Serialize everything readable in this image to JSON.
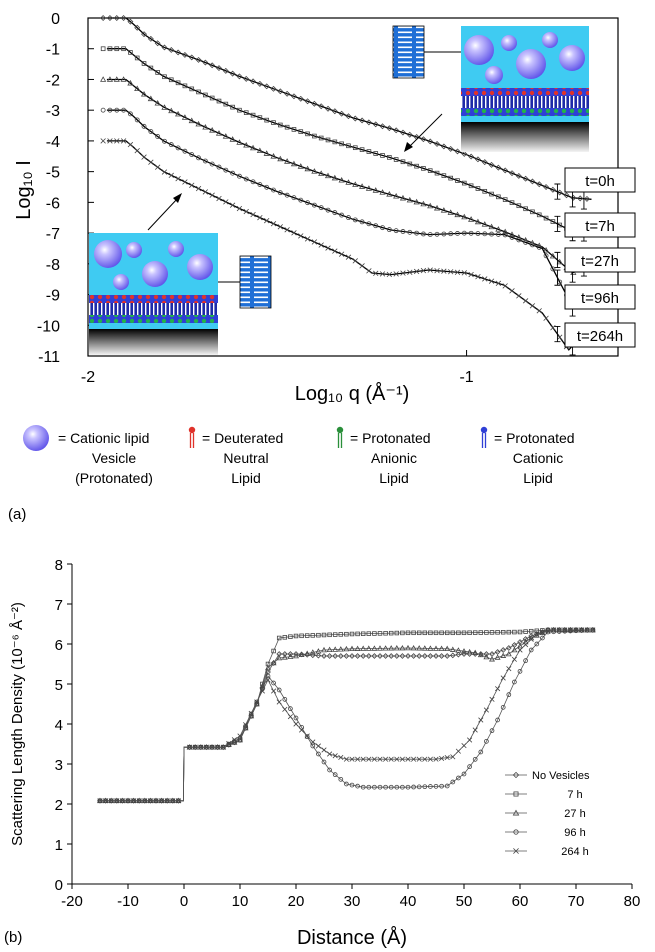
{
  "chart_data": [
    {
      "panel_label": "(a)",
      "type": "scatter",
      "xlabel": "Log₁₀ q (Å⁻¹)",
      "ylabel": "Log₁₀ I",
      "xlim": [
        -2.0,
        -0.6
      ],
      "ylim": [
        -11,
        0
      ],
      "x_tick_labels": [
        "-2",
        "-1"
      ],
      "y_tick_labels": [
        "0",
        "-1",
        "-2",
        "-3",
        "-4",
        "-5",
        "-6",
        "-7",
        "-8",
        "-9",
        "-10",
        "-11"
      ],
      "series": [
        {
          "name": "t=0h",
          "marker": "diamond",
          "offset": 0,
          "points": [
            [
              -1.95,
              0
            ],
            [
              -1.9,
              0
            ],
            [
              -1.88,
              -0.2
            ],
            [
              -1.85,
              -0.55
            ],
            [
              -1.8,
              -0.95
            ],
            [
              -1.7,
              -1.4
            ],
            [
              -1.6,
              -1.9
            ],
            [
              -1.5,
              -2.35
            ],
            [
              -1.4,
              -2.8
            ],
            [
              -1.3,
              -3.25
            ],
            [
              -1.2,
              -3.6
            ],
            [
              -1.1,
              -4.0
            ],
            [
              -1.0,
              -4.45
            ],
            [
              -0.9,
              -4.95
            ],
            [
              -0.8,
              -5.45
            ],
            [
              -0.72,
              -5.85
            ],
            [
              -0.67,
              -5.9
            ]
          ]
        },
        {
          "name": "t=7h",
          "marker": "square",
          "offset": -1,
          "points": [
            [
              -1.95,
              -1
            ],
            [
              -1.9,
              -1
            ],
            [
              -1.88,
              -1.2
            ],
            [
              -1.85,
              -1.5
            ],
            [
              -1.8,
              -1.9
            ],
            [
              -1.7,
              -2.45
            ],
            [
              -1.6,
              -3.0
            ],
            [
              -1.5,
              -3.45
            ],
            [
              -1.4,
              -3.85
            ],
            [
              -1.3,
              -4.2
            ],
            [
              -1.2,
              -4.55
            ],
            [
              -1.1,
              -4.95
            ],
            [
              -1.0,
              -5.4
            ],
            [
              -0.9,
              -5.9
            ],
            [
              -0.8,
              -6.45
            ],
            [
              -0.72,
              -6.95
            ],
            [
              -0.67,
              -6.9
            ]
          ]
        },
        {
          "name": "t=27h",
          "marker": "triangle",
          "offset": -2,
          "points": [
            [
              -1.95,
              -2
            ],
            [
              -1.9,
              -2
            ],
            [
              -1.88,
              -2.2
            ],
            [
              -1.85,
              -2.5
            ],
            [
              -1.8,
              -2.9
            ],
            [
              -1.7,
              -3.5
            ],
            [
              -1.6,
              -4.05
            ],
            [
              -1.5,
              -4.55
            ],
            [
              -1.4,
              -5.0
            ],
            [
              -1.3,
              -5.4
            ],
            [
              -1.2,
              -5.75
            ],
            [
              -1.1,
              -6.1
            ],
            [
              -1.0,
              -6.5
            ],
            [
              -0.9,
              -6.95
            ],
            [
              -0.8,
              -7.45
            ],
            [
              -0.72,
              -8.3
            ],
            [
              -0.67,
              -7.9
            ]
          ]
        },
        {
          "name": "t=96h",
          "marker": "circle",
          "offset": -3,
          "points": [
            [
              -1.95,
              -3
            ],
            [
              -1.9,
              -3
            ],
            [
              -1.88,
              -3.2
            ],
            [
              -1.85,
              -3.55
            ],
            [
              -1.8,
              -4.0
            ],
            [
              -1.7,
              -4.6
            ],
            [
              -1.6,
              -5.15
            ],
            [
              -1.5,
              -5.65
            ],
            [
              -1.4,
              -6.1
            ],
            [
              -1.3,
              -6.55
            ],
            [
              -1.2,
              -6.9
            ],
            [
              -1.1,
              -7.05
            ],
            [
              -1.0,
              -7.0
            ],
            [
              -0.9,
              -7.05
            ],
            [
              -0.8,
              -7.5
            ],
            [
              -0.72,
              -9.4
            ],
            [
              -0.67,
              -8.9
            ]
          ]
        },
        {
          "name": "t=264h",
          "marker": "cross",
          "offset": -4,
          "points": [
            [
              -1.95,
              -4
            ],
            [
              -1.9,
              -4
            ],
            [
              -1.88,
              -4.2
            ],
            [
              -1.85,
              -4.55
            ],
            [
              -1.8,
              -5.0
            ],
            [
              -1.7,
              -5.6
            ],
            [
              -1.6,
              -6.2
            ],
            [
              -1.5,
              -6.75
            ],
            [
              -1.4,
              -7.3
            ],
            [
              -1.3,
              -7.85
            ],
            [
              -1.25,
              -8.3
            ],
            [
              -1.2,
              -8.35
            ],
            [
              -1.1,
              -8.2
            ],
            [
              -1.0,
              -8.3
            ],
            [
              -0.9,
              -8.7
            ],
            [
              -0.8,
              -9.6
            ],
            [
              -0.73,
              -10.8
            ],
            [
              -0.67,
              -10.0
            ]
          ]
        }
      ],
      "legend": [
        {
          "label": "= Cationic lipid Vesicle (Protonated)",
          "lines": [
            "= Cationic lipid",
            "Vesicle",
            "(Protonated)"
          ],
          "icon": "vesicle",
          "color": "#5b52e6"
        },
        {
          "label": "= Deuterated Neutral Lipid",
          "lines": [
            "= Deuterated",
            "Neutral",
            "Lipid"
          ],
          "icon": "lipid",
          "color": "#e0322a"
        },
        {
          "label": "= Protonated Anionic Lipid",
          "lines": [
            "= Protonated",
            "Anionic",
            "Lipid"
          ],
          "icon": "lipid",
          "color": "#2a8f3a"
        },
        {
          "label": "= Protonated Cationic Lipid",
          "lines": [
            "= Protonated",
            "Cationic",
            "Lipid"
          ],
          "icon": "lipid",
          "color": "#2f3fd6"
        }
      ],
      "colors": {
        "water": "#3fcbf2",
        "vesicle": "#6a5cf0",
        "inset_panel": "#1f6fd6"
      }
    },
    {
      "panel_label": "(b)",
      "type": "line",
      "xlabel": "Distance (Å)",
      "ylabel": "Scattering Length Density (10⁻⁶ Å⁻²)",
      "xlim": [
        -20,
        80
      ],
      "ylim": [
        0,
        8
      ],
      "x_ticks": [
        -20,
        -10,
        0,
        10,
        20,
        30,
        40,
        50,
        60,
        70,
        80
      ],
      "y_ticks": [
        0,
        1,
        2,
        3,
        4,
        5,
        6,
        7,
        8
      ],
      "x_tick_labels": [
        "-20",
        "-10",
        "0",
        "10",
        "20",
        "30",
        "40",
        "50",
        "60",
        "70",
        "80"
      ],
      "y_tick_labels": [
        "0",
        "1",
        "2",
        "3",
        "4",
        "5",
        "6",
        "7",
        "8"
      ],
      "legend_position": "right",
      "series": [
        {
          "name": "No Vesicles",
          "marker": "diamond",
          "points": [
            [
              -15,
              2.08
            ],
            [
              -0.1,
              2.08
            ],
            [
              0,
              3.42
            ],
            [
              7,
              3.42
            ],
            [
              10,
              3.6
            ],
            [
              13,
              4.5
            ],
            [
              15,
              5.3
            ],
            [
              17,
              5.75
            ],
            [
              20,
              5.75
            ],
            [
              25,
              5.7
            ],
            [
              30,
              5.7
            ],
            [
              40,
              5.7
            ],
            [
              47,
              5.7
            ],
            [
              50,
              5.75
            ],
            [
              55,
              5.75
            ],
            [
              58,
              5.9
            ],
            [
              62,
              6.2
            ],
            [
              65,
              6.35
            ],
            [
              73,
              6.35
            ]
          ]
        },
        {
          "name": "7 h",
          "marker": "square",
          "points": [
            [
              -15,
              2.08
            ],
            [
              -0.1,
              2.08
            ],
            [
              0,
              3.42
            ],
            [
              7,
              3.42
            ],
            [
              10,
              3.6
            ],
            [
              13,
              4.5
            ],
            [
              15,
              5.5
            ],
            [
              17,
              6.15
            ],
            [
              20,
              6.2
            ],
            [
              30,
              6.25
            ],
            [
              40,
              6.28
            ],
            [
              50,
              6.28
            ],
            [
              60,
              6.3
            ],
            [
              65,
              6.35
            ],
            [
              73,
              6.35
            ]
          ]
        },
        {
          "name": "27 h",
          "marker": "triangle",
          "points": [
            [
              -15,
              2.08
            ],
            [
              -0.1,
              2.08
            ],
            [
              0,
              3.42
            ],
            [
              7,
              3.42
            ],
            [
              10,
              3.6
            ],
            [
              13,
              4.5
            ],
            [
              15,
              5.4
            ],
            [
              17,
              5.65
            ],
            [
              20,
              5.7
            ],
            [
              25,
              5.85
            ],
            [
              30,
              5.88
            ],
            [
              40,
              5.9
            ],
            [
              47,
              5.88
            ],
            [
              52,
              5.78
            ],
            [
              55,
              5.62
            ],
            [
              58,
              5.75
            ],
            [
              62,
              6.15
            ],
            [
              65,
              6.35
            ],
            [
              73,
              6.35
            ]
          ]
        },
        {
          "name": "96 h",
          "marker": "circle",
          "points": [
            [
              -15,
              2.08
            ],
            [
              -0.1,
              2.08
            ],
            [
              0,
              3.42
            ],
            [
              7,
              3.42
            ],
            [
              10,
              3.65
            ],
            [
              13,
              4.55
            ],
            [
              15,
              5.2
            ],
            [
              17,
              4.85
            ],
            [
              20,
              4.15
            ],
            [
              23,
              3.45
            ],
            [
              26,
              2.85
            ],
            [
              29,
              2.5
            ],
            [
              32,
              2.42
            ],
            [
              40,
              2.42
            ],
            [
              47,
              2.45
            ],
            [
              50,
              2.75
            ],
            [
              53,
              3.3
            ],
            [
              56,
              4.1
            ],
            [
              59,
              5.05
            ],
            [
              62,
              5.85
            ],
            [
              65,
              6.3
            ],
            [
              73,
              6.35
            ]
          ]
        },
        {
          "name": "264 h",
          "marker": "cross",
          "points": [
            [
              -15,
              2.08
            ],
            [
              -0.1,
              2.08
            ],
            [
              0,
              3.42
            ],
            [
              7,
              3.42
            ],
            [
              10,
              3.7
            ],
            [
              13,
              4.55
            ],
            [
              15,
              5.1
            ],
            [
              17,
              4.55
            ],
            [
              20,
              4.0
            ],
            [
              23,
              3.55
            ],
            [
              26,
              3.25
            ],
            [
              29,
              3.12
            ],
            [
              35,
              3.12
            ],
            [
              45,
              3.12
            ],
            [
              48,
              3.18
            ],
            [
              51,
              3.6
            ],
            [
              54,
              4.35
            ],
            [
              57,
              5.15
            ],
            [
              60,
              5.85
            ],
            [
              63,
              6.25
            ],
            [
              66,
              6.35
            ],
            [
              73,
              6.35
            ]
          ]
        }
      ]
    }
  ]
}
